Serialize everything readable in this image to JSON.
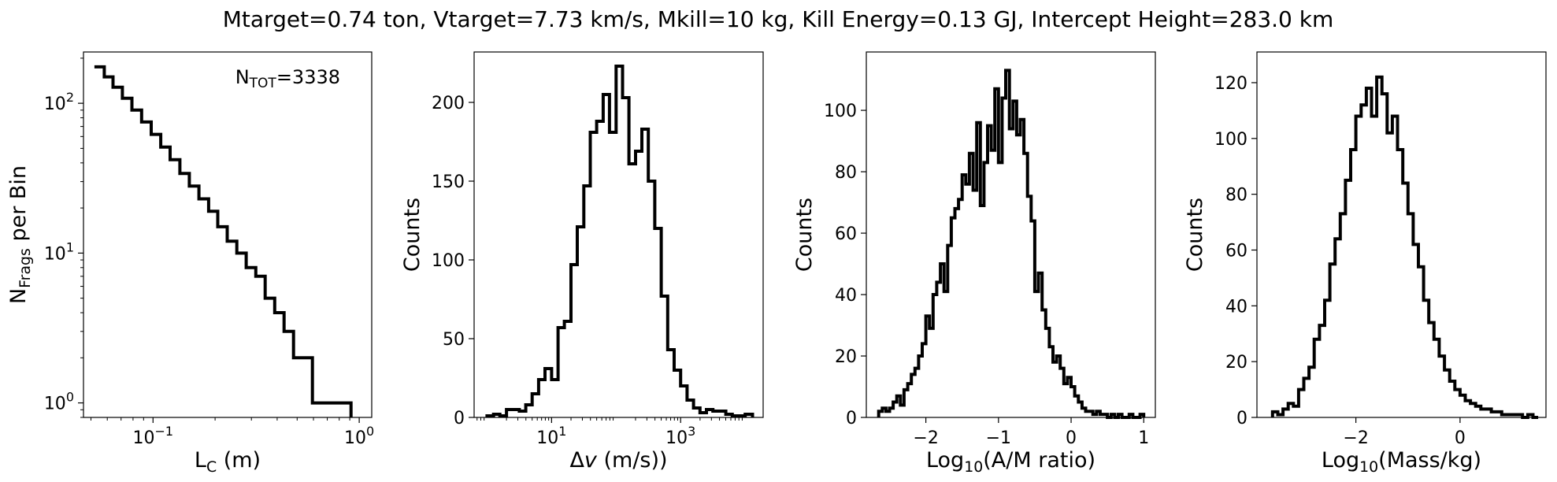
{
  "figure": {
    "suptitle": "Mtarget=0.74 ton, Vtarget=7.73 km/s, Mkill=10 kg, Kill Energy=0.13 GJ, Intercept Height=283.0 km"
  },
  "chart_data": [
    {
      "type": "line",
      "subtype": "cumulative-step",
      "xscale": "log",
      "yscale": "log",
      "xlim": [
        0.046,
        1.15
      ],
      "ylim": [
        0.8,
        220
      ],
      "xlabel": {
        "main": "L",
        "sub": "C",
        "rest": " (m)"
      },
      "ylabel": {
        "main": "N",
        "sub": "Frags",
        "rest": " per Bin"
      },
      "xticks": [
        {
          "value": 0.1,
          "base": "10",
          "exp": "−1"
        },
        {
          "value": 1,
          "base": "10",
          "exp": "0"
        }
      ],
      "yticks": [
        {
          "value": 1,
          "base": "10",
          "exp": "0"
        },
        {
          "value": 10,
          "base": "10",
          "exp": "1"
        },
        {
          "value": 100,
          "base": "10",
          "exp": "2"
        }
      ],
      "annotation": {
        "main": "N",
        "sub": "TOT",
        "rest": "=3338",
        "position": "top-right"
      },
      "x": [
        0.052,
        0.058,
        0.064,
        0.071,
        0.079,
        0.088,
        0.098,
        0.109,
        0.121,
        0.135,
        0.15,
        0.167,
        0.186,
        0.206,
        0.229,
        0.255,
        0.283,
        0.315,
        0.35,
        0.389,
        0.432,
        0.48,
        0.534,
        0.593,
        0.66,
        0.733,
        0.815
      ],
      "y": [
        175,
        150,
        128,
        108,
        90,
        75,
        62,
        51,
        42,
        34,
        28,
        23,
        19,
        15,
        12,
        10,
        8,
        7,
        5,
        4,
        3,
        2,
        2,
        1,
        1,
        1,
        1
      ],
      "series_color": "#000000",
      "grid": false
    },
    {
      "type": "line",
      "subtype": "histogram-step",
      "xscale": "log",
      "yscale": "linear",
      "xlim": [
        0.63,
        19000
      ],
      "ylim": [
        0,
        232
      ],
      "xlabel": {
        "main": "Δ",
        "italic": "v",
        "rest": " (m/s))"
      },
      "ylabel": "Counts",
      "xticks": [
        {
          "value": 10,
          "base": "10",
          "exp": "1"
        },
        {
          "value": 1000,
          "base": "10",
          "exp": "3"
        }
      ],
      "yticks": [
        0,
        50,
        100,
        150,
        200
      ],
      "bin_edges": [
        1.0,
        1.26,
        1.58,
        2.0,
        2.5,
        3.16,
        3.98,
        5.0,
        6.3,
        7.9,
        10.0,
        12.6,
        15.8,
        20,
        25,
        31.6,
        39.8,
        50,
        63,
        79,
        100,
        126,
        158,
        200,
        251,
        316,
        398,
        501,
        631,
        794,
        1000,
        1259,
        1585,
        1995,
        2512,
        3162,
        3981,
        5012,
        6310,
        7943,
        10000,
        13000
      ],
      "counts": [
        1,
        2,
        1,
        5,
        5,
        4,
        8,
        15,
        24,
        31,
        24,
        57,
        61,
        97,
        121,
        147,
        181,
        188,
        205,
        181,
        223,
        203,
        161,
        169,
        183,
        150,
        120,
        77,
        43,
        30,
        20,
        11,
        6,
        3,
        5,
        4,
        4,
        2,
        1,
        1,
        2
      ],
      "series_color": "#000000",
      "grid": false
    },
    {
      "type": "line",
      "subtype": "histogram-step",
      "xscale": "linear",
      "yscale": "linear",
      "xlim": [
        -2.82,
        1.16
      ],
      "ylim": [
        0,
        119
      ],
      "xlabel": {
        "main": "Log",
        "sub": "10",
        "rest": "(A/M ratio)"
      },
      "ylabel": "Counts",
      "xticks": [
        {
          "value": -2,
          "label": "−2"
        },
        {
          "value": -1,
          "label": "−1"
        },
        {
          "value": 0,
          "label": "0"
        },
        {
          "value": 1,
          "label": "1"
        }
      ],
      "yticks": [
        0,
        20,
        40,
        60,
        80,
        100
      ],
      "bin_edges": [
        -2.65,
        -2.6,
        -2.55,
        -2.5,
        -2.45,
        -2.4,
        -2.35,
        -2.3,
        -2.25,
        -2.2,
        -2.15,
        -2.1,
        -2.05,
        -2.0,
        -1.95,
        -1.9,
        -1.85,
        -1.8,
        -1.75,
        -1.7,
        -1.65,
        -1.6,
        -1.55,
        -1.5,
        -1.45,
        -1.4,
        -1.35,
        -1.3,
        -1.25,
        -1.2,
        -1.15,
        -1.1,
        -1.05,
        -1.0,
        -0.95,
        -0.9,
        -0.85,
        -0.8,
        -0.75,
        -0.7,
        -0.65,
        -0.6,
        -0.55,
        -0.5,
        -0.45,
        -0.4,
        -0.35,
        -0.3,
        -0.25,
        -0.2,
        -0.15,
        -0.1,
        -0.05,
        0.0,
        0.05,
        0.1,
        0.15,
        0.2,
        0.25,
        0.3,
        0.35,
        0.4,
        0.45,
        0.5,
        0.55,
        0.6,
        0.65,
        0.7,
        0.75,
        0.8,
        0.85,
        0.9,
        0.95,
        1.0
      ],
      "counts": [
        2,
        3,
        2,
        3,
        5,
        7,
        4,
        9,
        11,
        14,
        16,
        20,
        24,
        33,
        29,
        40,
        44,
        50,
        41,
        56,
        65,
        68,
        71,
        79,
        76,
        86,
        74,
        96,
        69,
        83,
        95,
        87,
        107,
        83,
        104,
        113,
        94,
        103,
        92,
        97,
        86,
        72,
        64,
        41,
        47,
        35,
        29,
        23,
        18,
        20,
        16,
        11,
        13,
        10,
        7,
        5,
        3,
        2,
        2,
        1,
        2,
        1,
        1,
        0,
        1,
        0,
        1,
        0,
        0,
        1,
        0,
        0,
        1
      ],
      "series_color": "#000000",
      "grid": false
    },
    {
      "type": "line",
      "subtype": "histogram-step",
      "xscale": "linear",
      "yscale": "linear",
      "xlim": [
        -3.9,
        1.65
      ],
      "ylim": [
        0,
        131
      ],
      "xlabel": {
        "main": "Log",
        "sub": "10",
        "rest": "(Mass/kg)"
      },
      "ylabel": "Counts",
      "xticks": [
        {
          "value": -2,
          "label": "−2"
        },
        {
          "value": 0,
          "label": "0"
        }
      ],
      "yticks": [
        0,
        20,
        40,
        60,
        80,
        100,
        120
      ],
      "bin_edges": [
        -3.6,
        -3.5,
        -3.4,
        -3.3,
        -3.2,
        -3.1,
        -3.0,
        -2.9,
        -2.8,
        -2.7,
        -2.6,
        -2.5,
        -2.4,
        -2.3,
        -2.2,
        -2.1,
        -2.0,
        -1.9,
        -1.8,
        -1.7,
        -1.6,
        -1.5,
        -1.4,
        -1.3,
        -1.2,
        -1.1,
        -1.0,
        -0.9,
        -0.8,
        -0.7,
        -0.6,
        -0.5,
        -0.4,
        -0.3,
        -0.2,
        -0.1,
        0.0,
        0.1,
        0.2,
        0.3,
        0.4,
        0.5,
        0.6,
        0.7,
        0.8,
        0.9,
        1.0,
        1.1,
        1.2,
        1.3,
        1.4,
        1.5
      ],
      "counts": [
        2,
        1,
        3,
        5,
        4,
        10,
        14,
        18,
        28,
        33,
        42,
        55,
        64,
        73,
        85,
        96,
        108,
        112,
        118,
        108,
        122,
        116,
        102,
        108,
        96,
        84,
        73,
        62,
        54,
        42,
        34,
        28,
        22,
        17,
        13,
        10,
        8,
        6,
        5,
        4,
        3,
        3,
        2,
        2,
        1,
        1,
        1,
        1,
        0,
        1,
        0
      ],
      "series_color": "#000000",
      "grid": false
    }
  ]
}
